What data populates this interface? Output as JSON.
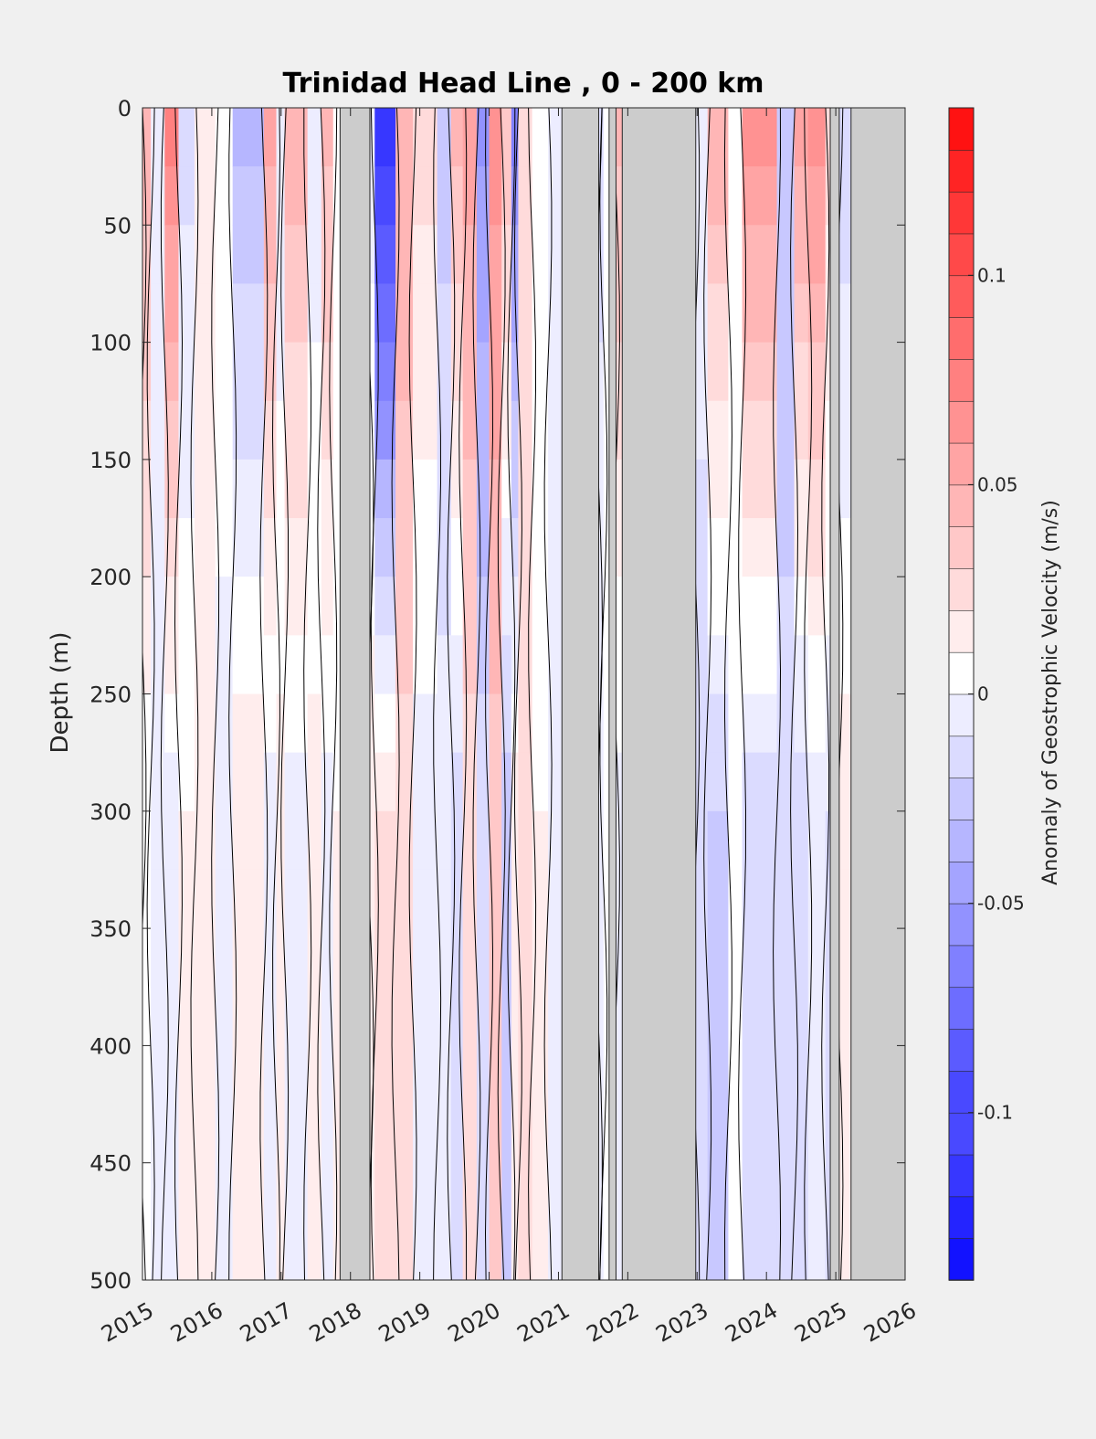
{
  "chart_data": {
    "type": "heatmap",
    "title": "Trinidad Head Line , 0 - 200 km",
    "xlabel": "",
    "ylabel": "Depth (m)",
    "xlim": [
      2015,
      2026
    ],
    "ylim": [
      0,
      500
    ],
    "y_reversed": true,
    "x_ticks": [
      "2015",
      "2016",
      "2017",
      "2018",
      "2019",
      "2020",
      "2021",
      "2022",
      "2023",
      "2024",
      "2025",
      "2026"
    ],
    "y_ticks": [
      "0",
      "50",
      "100",
      "150",
      "200",
      "250",
      "300",
      "350",
      "400",
      "450",
      "500"
    ],
    "colorbar": {
      "label": "Anomaly of Geostrophic Velocity (m/s)",
      "range": [
        -0.14,
        0.14
      ],
      "step": 0.01,
      "ticks": [
        "-0.1",
        "-0.05",
        "0",
        "0.05",
        "0.1"
      ],
      "low_color": "#0000ff",
      "mid_color": "#ffffff",
      "high_color": "#ff0000"
    },
    "missing_color": "#cccccc",
    "missing_periods": [
      [
        2017.85,
        2018.28
      ],
      [
        2021.05,
        2021.58
      ],
      [
        2021.73,
        2021.83
      ],
      [
        2021.92,
        2022.98
      ],
      [
        2024.92,
        2025.05
      ],
      [
        2025.22,
        2026.0
      ]
    ],
    "columns": [
      {
        "x0": 2015.0,
        "x1": 2015.12,
        "top": 0.04,
        "bottom": 0.0
      },
      {
        "x0": 2015.12,
        "x1": 2015.32,
        "top": -0.012,
        "bottom": -0.008
      },
      {
        "x0": 2015.32,
        "x1": 2015.52,
        "top": 0.07,
        "bottom": -0.01
      },
      {
        "x0": 2015.52,
        "x1": 2015.75,
        "top": -0.02,
        "bottom": 0.005
      },
      {
        "x0": 2015.75,
        "x1": 2016.05,
        "top": 0.015,
        "bottom": 0.005
      },
      {
        "x0": 2016.05,
        "x1": 2016.3,
        "top": 0.0,
        "bottom": -0.008
      },
      {
        "x0": 2016.3,
        "x1": 2016.75,
        "top": -0.04,
        "bottom": 0.012
      },
      {
        "x0": 2016.75,
        "x1": 2016.93,
        "top": 0.05,
        "bottom": -0.012
      },
      {
        "x0": 2016.93,
        "x1": 2017.05,
        "top": -0.015,
        "bottom": 0.01
      },
      {
        "x0": 2017.05,
        "x1": 2017.38,
        "top": 0.045,
        "bottom": -0.01
      },
      {
        "x0": 2017.38,
        "x1": 2017.58,
        "top": -0.012,
        "bottom": 0.008
      },
      {
        "x0": 2017.58,
        "x1": 2017.75,
        "top": 0.04,
        "bottom": -0.008
      },
      {
        "x0": 2017.75,
        "x1": 2017.85,
        "top": 0.0,
        "bottom": 0.005
      },
      {
        "x0": 2018.28,
        "x1": 2018.35,
        "top": -0.01,
        "bottom": 0.01
      },
      {
        "x0": 2018.35,
        "x1": 2018.65,
        "top": -0.12,
        "bottom": 0.02
      },
      {
        "x0": 2018.65,
        "x1": 2018.9,
        "top": 0.045,
        "bottom": 0.02
      },
      {
        "x0": 2018.9,
        "x1": 2019.25,
        "top": 0.02,
        "bottom": -0.01
      },
      {
        "x0": 2019.25,
        "x1": 2019.45,
        "top": -0.03,
        "bottom": -0.01
      },
      {
        "x0": 2019.45,
        "x1": 2019.62,
        "top": 0.04,
        "bottom": -0.02
      },
      {
        "x0": 2019.62,
        "x1": 2019.82,
        "top": 0.05,
        "bottom": 0.02
      },
      {
        "x0": 2019.82,
        "x1": 2020.0,
        "top": -0.06,
        "bottom": -0.02
      },
      {
        "x0": 2020.0,
        "x1": 2020.18,
        "top": 0.06,
        "bottom": 0.03
      },
      {
        "x0": 2020.18,
        "x1": 2020.32,
        "top": 0.035,
        "bottom": -0.03
      },
      {
        "x0": 2020.32,
        "x1": 2020.42,
        "top": -0.07,
        "bottom": 0.01
      },
      {
        "x0": 2020.42,
        "x1": 2020.62,
        "top": 0.02,
        "bottom": 0.015
      },
      {
        "x0": 2020.62,
        "x1": 2020.85,
        "top": 0.0,
        "bottom": 0.005
      },
      {
        "x0": 2020.85,
        "x1": 2021.05,
        "top": -0.015,
        "bottom": -0.01
      },
      {
        "x0": 2021.58,
        "x1": 2021.65,
        "top": -0.02,
        "bottom": -0.005
      },
      {
        "x0": 2021.65,
        "x1": 2021.73,
        "top": 0.0,
        "bottom": 0.0
      },
      {
        "x0": 2021.83,
        "x1": 2021.92,
        "top": 0.04,
        "bottom": -0.01
      },
      {
        "x0": 2022.98,
        "x1": 2023.15,
        "top": -0.01,
        "bottom": -0.02
      },
      {
        "x0": 2023.15,
        "x1": 2023.45,
        "top": 0.045,
        "bottom": -0.025
      },
      {
        "x0": 2023.45,
        "x1": 2023.65,
        "top": 0.0,
        "bottom": -0.005
      },
      {
        "x0": 2023.65,
        "x1": 2024.15,
        "top": 0.06,
        "bottom": -0.02
      },
      {
        "x0": 2024.15,
        "x1": 2024.4,
        "top": -0.035,
        "bottom": -0.02
      },
      {
        "x0": 2024.4,
        "x1": 2024.6,
        "top": 0.05,
        "bottom": -0.02
      },
      {
        "x0": 2024.6,
        "x1": 2024.85,
        "top": 0.06,
        "bottom": -0.01
      },
      {
        "x0": 2024.85,
        "x1": 2024.92,
        "top": 0.02,
        "bottom": -0.015
      },
      {
        "x0": 2025.05,
        "x1": 2025.22,
        "top": -0.025,
        "bottom": 0.01
      }
    ]
  }
}
